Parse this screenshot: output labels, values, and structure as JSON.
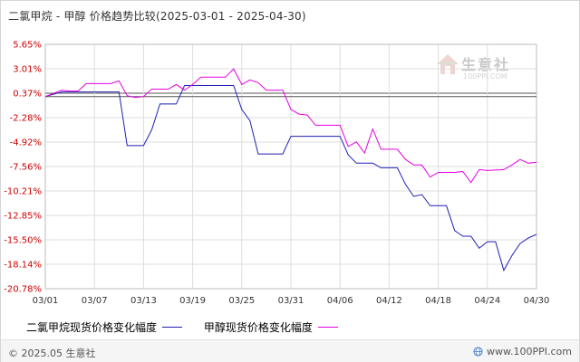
{
  "title": "二氯甲烷 - 甲醇 价格趋势比较(2025-03-01 - 2025-04-30)",
  "legend": {
    "series1": "二氯甲烷现货价格变化幅度",
    "series2": "甲醇现货价格变化幅度"
  },
  "footer": {
    "copyright": "© 2025.05 生意社",
    "site": "www.100PPI.com"
  },
  "watermark": {
    "name": "生意社",
    "url": "100PPI.COM"
  },
  "colors": {
    "series1": "#1f1fb4",
    "series2": "#e600e6",
    "ytick": "#cc0000",
    "grid": "#dddddd",
    "zero": "#555555"
  },
  "chart_data": {
    "type": "line",
    "title": "二氯甲烷 - 甲醇 价格趋势比较(2025-03-01 - 2025-04-30)",
    "xlabel": "",
    "ylabel": "",
    "ylim": [
      -20.78,
      5.65
    ],
    "yticks": [
      "5.65%",
      "3.01%",
      "0.37%",
      "-2.28%",
      "-4.92%",
      "-7.56%",
      "-10.21%",
      "-12.85%",
      "-15.50%",
      "-18.14%",
      "-20.78%"
    ],
    "ytick_values": [
      5.65,
      3.01,
      0.37,
      -2.28,
      -4.92,
      -7.56,
      -10.21,
      -12.85,
      -15.5,
      -18.14,
      -20.78
    ],
    "xticks": [
      "03/01",
      "03/07",
      "03/13",
      "03/19",
      "03/25",
      "03/31",
      "04/06",
      "04/12",
      "04/18",
      "04/24",
      "04/30"
    ],
    "xlim": [
      1,
      61
    ],
    "grid": true,
    "legend_position": "bottom",
    "series": [
      {
        "name": "二氯甲烷现货价格变化幅度",
        "color": "#1f1fb4",
        "points": [
          [
            1,
            0
          ],
          [
            3,
            0.5
          ],
          [
            5,
            0.5
          ],
          [
            9,
            0.5
          ],
          [
            10,
            0.5
          ],
          [
            11,
            -5.3
          ],
          [
            13,
            -5.3
          ],
          [
            14,
            -3.6
          ],
          [
            15,
            -0.8
          ],
          [
            17,
            -0.8
          ],
          [
            18,
            1.2
          ],
          [
            23,
            1.2
          ],
          [
            24,
            1.2
          ],
          [
            25,
            -1.4
          ],
          [
            26,
            -2.6
          ],
          [
            27,
            -6.2
          ],
          [
            30,
            -6.2
          ],
          [
            31,
            -4.3
          ],
          [
            37,
            -4.3
          ],
          [
            38,
            -6.3
          ],
          [
            39,
            -7.2
          ],
          [
            41,
            -7.2
          ],
          [
            42,
            -7.7
          ],
          [
            44,
            -7.7
          ],
          [
            45,
            -9.5
          ],
          [
            46,
            -10.8
          ],
          [
            47,
            -10.6
          ],
          [
            48,
            -11.8
          ],
          [
            50,
            -11.8
          ],
          [
            51,
            -14.5
          ],
          [
            52,
            -15.1
          ],
          [
            53,
            -15.1
          ],
          [
            54,
            -16.4
          ],
          [
            55,
            -15.7
          ],
          [
            56,
            -15.7
          ],
          [
            57,
            -18.8
          ],
          [
            58,
            -17.2
          ],
          [
            59,
            -15.9
          ],
          [
            60,
            -15.3
          ],
          [
            61,
            -14.9
          ]
        ]
      },
      {
        "name": "甲醇现货价格变化幅度",
        "color": "#e600e6",
        "points": [
          [
            1,
            0
          ],
          [
            3,
            0.7
          ],
          [
            4,
            0.6
          ],
          [
            5,
            0.6
          ],
          [
            6,
            1.4
          ],
          [
            9,
            1.4
          ],
          [
            10,
            1.7
          ],
          [
            11,
            0.1
          ],
          [
            12,
            -0.1
          ],
          [
            13,
            0
          ],
          [
            14,
            0.8
          ],
          [
            16,
            0.8
          ],
          [
            17,
            1.3
          ],
          [
            18,
            0.7
          ],
          [
            19,
            1.3
          ],
          [
            20,
            2.1
          ],
          [
            23,
            2.1
          ],
          [
            24,
            3.0
          ],
          [
            25,
            1.3
          ],
          [
            26,
            1.8
          ],
          [
            27,
            1.5
          ],
          [
            28,
            0.7
          ],
          [
            30,
            0.7
          ],
          [
            31,
            -1.4
          ],
          [
            32,
            -1.9
          ],
          [
            33,
            -2.0
          ],
          [
            34,
            -3.1
          ],
          [
            37,
            -3.1
          ],
          [
            38,
            -5.4
          ],
          [
            39,
            -4.9
          ],
          [
            40,
            -6.1
          ],
          [
            41,
            -3.5
          ],
          [
            42,
            -5.7
          ],
          [
            44,
            -5.7
          ],
          [
            45,
            -6.8
          ],
          [
            46,
            -7.4
          ],
          [
            47,
            -7.4
          ],
          [
            48,
            -8.7
          ],
          [
            49,
            -8.2
          ],
          [
            51,
            -8.2
          ],
          [
            52,
            -8.1
          ],
          [
            53,
            -9.3
          ],
          [
            54,
            -7.9
          ],
          [
            55,
            -8.0
          ],
          [
            57,
            -7.9
          ],
          [
            58,
            -7.4
          ],
          [
            59,
            -6.8
          ],
          [
            60,
            -7.2
          ],
          [
            61,
            -7.1
          ]
        ]
      }
    ]
  }
}
